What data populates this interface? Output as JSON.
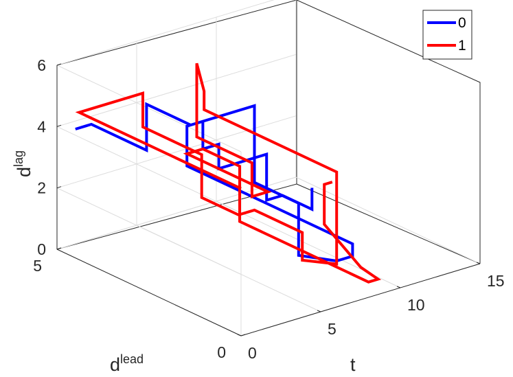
{
  "chart_data": {
    "type": "line3d",
    "axes": {
      "x": {
        "label": "t",
        "ticks": [
          0,
          5,
          10,
          15
        ],
        "tick_labels": [
          "0",
          "5",
          "10",
          "15"
        ],
        "lim": [
          0,
          15
        ]
      },
      "y": {
        "label_base": "d",
        "label_sup": "lead",
        "ticks": [
          0,
          5
        ],
        "tick_labels": [
          "0",
          "5"
        ],
        "lim": [
          0,
          5
        ]
      },
      "z": {
        "label_base": "d",
        "label_sup": "lag",
        "ticks": [
          0,
          2,
          4,
          6
        ],
        "tick_labels": [
          "0",
          "2",
          "4",
          "6"
        ],
        "lim": [
          0,
          6
        ]
      }
    },
    "grid": true,
    "legend": {
      "position": "top-right",
      "entries": [
        "0",
        "1"
      ]
    },
    "series": [
      {
        "name": "0",
        "color": "#0000ff",
        "points": [
          [
            0,
            4.5,
            4.2
          ],
          [
            1,
            4.5,
            4.2
          ],
          [
            1,
            3.0,
            4.2
          ],
          [
            1,
            3.0,
            5.7
          ],
          [
            1,
            1.8,
            5.7
          ],
          [
            5,
            1.8,
            5.7
          ],
          [
            5,
            1.8,
            3.2
          ],
          [
            5,
            0.6,
            3.2
          ],
          [
            5,
            0.6,
            1.5
          ],
          [
            6,
            0.0,
            1.5
          ],
          [
            7,
            0.0,
            1.5
          ],
          [
            7,
            0.0,
            1.9
          ],
          [
            7,
            4.5,
            1.9
          ],
          [
            7,
            4.5,
            3.2
          ],
          [
            8,
            4.5,
            3.2
          ],
          [
            8,
            4.5,
            2.3
          ],
          [
            9,
            4.5,
            2.3
          ],
          [
            9,
            4.5,
            1.5
          ],
          [
            12,
            4.5,
            1.5
          ],
          [
            12,
            4.5,
            0.0
          ],
          [
            13,
            4.5,
            0.0
          ],
          [
            13,
            3.7,
            0.0
          ],
          [
            13,
            3.7,
            0.7
          ]
        ]
      },
      {
        "name": "1",
        "color": "#ff0000",
        "points": [
          [
            0,
            0.0,
            4.8
          ],
          [
            0,
            4.4,
            4.8
          ],
          [
            4,
            4.4,
            4.8
          ],
          [
            4,
            4.4,
            3.7
          ],
          [
            4,
            2.8,
            3.7
          ],
          [
            4,
            2.8,
            2.3
          ],
          [
            4,
            1.8,
            2.3
          ],
          [
            5,
            1.8,
            2.3
          ],
          [
            5,
            0.5,
            2.3
          ],
          [
            5,
            0.5,
            1.4
          ],
          [
            6,
            0.0,
            1.4
          ],
          [
            6,
            0.0,
            4.4
          ],
          [
            6,
            1.8,
            4.4
          ],
          [
            6,
            3.6,
            4.4
          ],
          [
            6,
            3.6,
            5.0
          ],
          [
            6,
            3.8,
            5.8
          ],
          [
            6,
            3.8,
            3.4
          ],
          [
            6,
            2.3,
            3.4
          ],
          [
            6,
            2.3,
            2.3
          ],
          [
            7,
            2.3,
            2.3
          ],
          [
            7,
            4.5,
            2.3
          ],
          [
            8,
            4.5,
            2.3
          ],
          [
            8,
            3.5,
            2.3
          ],
          [
            8,
            3.5,
            0.5
          ],
          [
            8,
            0.0,
            0.5
          ],
          [
            8,
            0.0,
            0.5
          ],
          [
            8.6,
            0.0,
            0.5
          ],
          [
            8.9,
            0.6,
            0.5
          ],
          [
            11,
            2.5,
            0.5
          ],
          [
            11,
            2.5,
            1.8
          ],
          [
            11.5,
            2.5,
            1.8
          ]
        ]
      }
    ]
  }
}
